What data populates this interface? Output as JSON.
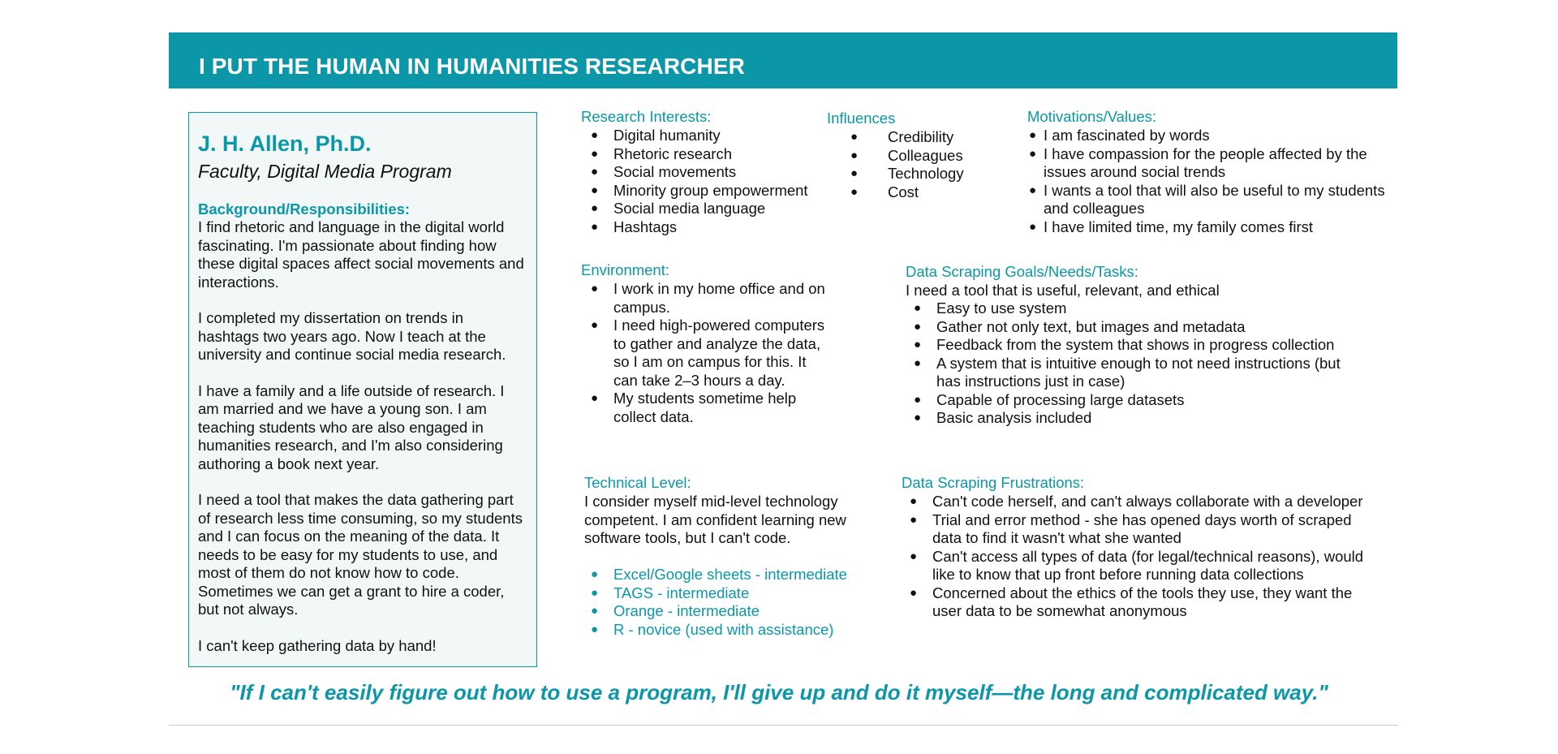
{
  "header": {
    "title": "I PUT THE HUMAN IN HUMANITIES RESEARCHER"
  },
  "profile": {
    "name": "J. H. Allen, Ph.D.",
    "role": "Faculty, Digital Media Program",
    "background_title": "Background/Responsibilities:",
    "paragraphs": [
      "I find rhetoric and language in the digital world fascinating. I'm passionate about finding how these digital spaces affect social movements and interactions.",
      "I completed my dissertation on trends in hashtags two years ago. Now I teach at the university and continue social media research.",
      "I have a family and a life outside of research. I am married and we have a young son. I am teaching students who are also engaged in humanities research, and I'm also considering authoring a book next year.",
      "I need a tool that makes the data gathering part of research less time consuming, so my students and I can focus on the meaning of the data. It needs to be easy for my students to use, and most of them do not know how to code. Sometimes we can get a grant to hire a coder, but not always.",
      "I can't keep gathering data by hand!"
    ]
  },
  "research_interests": {
    "title": "Research Interests:",
    "items": [
      "Digital humanity",
      "Rhetoric research",
      "Social movements",
      "Minority group empowerment",
      "Social media language",
      "Hashtags"
    ]
  },
  "influences": {
    "title": "Influences",
    "items": [
      "Credibility",
      "Colleagues",
      "Technology",
      "Cost"
    ]
  },
  "motivations": {
    "title": "Motivations/Values:",
    "items": [
      "I am fascinated by words",
      "I have compassion for the people affected by the issues around social trends",
      "I wants a tool that will also be useful to my students and colleagues",
      "I have limited time, my family comes first"
    ]
  },
  "environment": {
    "title": "Environment:",
    "items": [
      "I work in my home office and on campus.",
      "I need high-powered computers to gather and analyze the data, so I am on campus for this. It can take 2–3 hours a day.",
      "My students sometime help collect data."
    ]
  },
  "goals": {
    "title": "Data Scraping Goals/Needs/Tasks:",
    "intro": "I need a tool that is useful, relevant, and ethical",
    "items": [
      "Easy to use system",
      "Gather not only text, but images and metadata",
      "Feedback from the system that shows in progress collection",
      "A system that is intuitive enough to not need instructions (but has instructions just in case)",
      "Capable of processing large datasets",
      "Basic analysis included"
    ]
  },
  "technical": {
    "title": "Technical Level:",
    "text": "I consider myself mid-level technology competent. I am confident  learning new software tools, but I can't code.",
    "items": [
      "Excel/Google sheets - intermediate",
      "TAGS - intermediate",
      "Orange - intermediate",
      "R - novice (used with assistance)"
    ]
  },
  "frustrations": {
    "title": "Data Scraping Frustrations:",
    "items": [
      "Can't code herself, and can't always collaborate with a developer",
      "Trial and error method - she has opened days worth of scraped data to find it wasn't what she wanted",
      "Can't access all types of data (for legal/technical reasons), would like to know that up front before running data collections",
      "Concerned about the ethics of the tools they use, they want the user data to be somewhat anonymous"
    ]
  },
  "quote": "\"If I can't easily figure out how to use a program, I'll give up and do it myself—the long and complicated way.\"",
  "colors": {
    "accent": "#0b97a7",
    "panel_bg": "#f2f8f8"
  }
}
